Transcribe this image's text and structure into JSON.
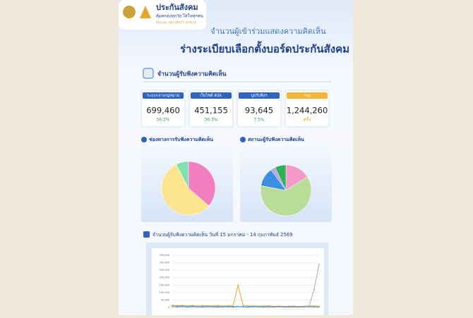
{
  "header": {
    "brand": "ประกันสังคม",
    "tagline": "คุ้มครองทุกวัย ใส่ใจทุกคน",
    "org": "SOCIAL SECURITY OFFICE"
  },
  "title": {
    "line1": "จำนวนผู้เข้าร่วมแสดงความคิดเห็น",
    "line2": "ร่างระเบียบเลือกตั้งบอร์ดประกันสังคม"
  },
  "summary": {
    "heading": "จำนวนผู้รับฟังความคิดเห็น",
    "cards": [
      {
        "label": "ระบบกลางกฎหมาย",
        "count": "699,460",
        "share": "56.2%"
      },
      {
        "label": "เว็บไซต์ สปส.",
        "count": "451,155",
        "share": "36.3%"
      },
      {
        "label": "บูธรับฟังฯ",
        "count": "93,645",
        "share": "7.5%"
      },
      {
        "label": "รวม",
        "count": "1,244,260",
        "unit": "ครั้ง"
      }
    ]
  },
  "chart_data": [
    {
      "type": "pie",
      "title": "ช่องทางการรับฟังความคิดเห็น",
      "values": [
        7.5,
        36.3,
        56.2
      ],
      "colors": [
        "#7fe0b0",
        "#f27ec2",
        "#fde58f"
      ]
    },
    {
      "type": "pie",
      "title": "สถานะผู้รับฟังความคิดเห็น",
      "values": [
        16,
        62,
        12,
        3,
        7
      ],
      "colors": [
        "#f59ac8",
        "#b9dc98",
        "#3b8fe0",
        "#b9a4e6",
        "#2fb05a"
      ]
    },
    {
      "type": "line",
      "title": "จำนวนผู้รับฟังความคิดเห็น วันที่ 15 มกราคม - 14 กุมภาพันธ์ 2569",
      "categories": [
        null,
        null,
        null,
        null,
        null,
        null,
        null,
        null,
        null,
        null,
        null,
        null,
        null,
        null,
        null,
        null,
        null,
        null,
        null,
        null,
        null,
        null,
        null,
        null,
        null,
        null,
        null,
        null,
        null,
        null
      ],
      "ylim": [
        0,
        350000
      ],
      "yticks": [
        {
          "value": 0,
          "label": "0"
        },
        {
          "value": 50000,
          "label": "50,000"
        },
        {
          "value": 100000,
          "label": "100,000"
        },
        {
          "value": 150000,
          "label": "150,000"
        },
        {
          "value": 200000,
          "label": "200,000"
        },
        {
          "value": 250000,
          "label": "250,000"
        },
        {
          "value": 300000,
          "label": "300,000"
        },
        {
          "value": 350000,
          "label": "350,000"
        }
      ],
      "grid": true,
      "series": [
        {
          "color": "#9ca3af",
          "values": [
            12000,
            9000,
            11000,
            8000,
            10000,
            7000,
            9000,
            8000,
            6000,
            9000,
            7000,
            8000,
            6000,
            7000,
            5000,
            6000,
            8000,
            5000,
            6000,
            7000,
            5000,
            6000,
            4000,
            5000,
            6000,
            5000,
            4000,
            6000,
            120000,
            290000
          ]
        },
        {
          "color": "#f59e0b",
          "values": [
            15000,
            12000,
            14000,
            10000,
            13000,
            9000,
            12000,
            11000,
            10000,
            12000,
            9000,
            11000,
            10000,
            150000,
            12000,
            9000,
            10000,
            8000,
            9000,
            11000,
            8000,
            9000,
            7000,
            8000,
            9000,
            7000,
            8000,
            9000,
            10000,
            8000
          ]
        },
        {
          "color": "#3b82f6",
          "values": [
            5000,
            4000,
            6000,
            3000,
            5000,
            4000,
            3000,
            5000,
            4000,
            3000,
            4000,
            5000,
            3000,
            6000,
            4000,
            3000,
            5000,
            4000,
            3000,
            4000,
            3000,
            5000,
            4000,
            3000,
            4000,
            3000,
            4000,
            5000,
            4000,
            3000
          ]
        }
      ]
    }
  ]
}
